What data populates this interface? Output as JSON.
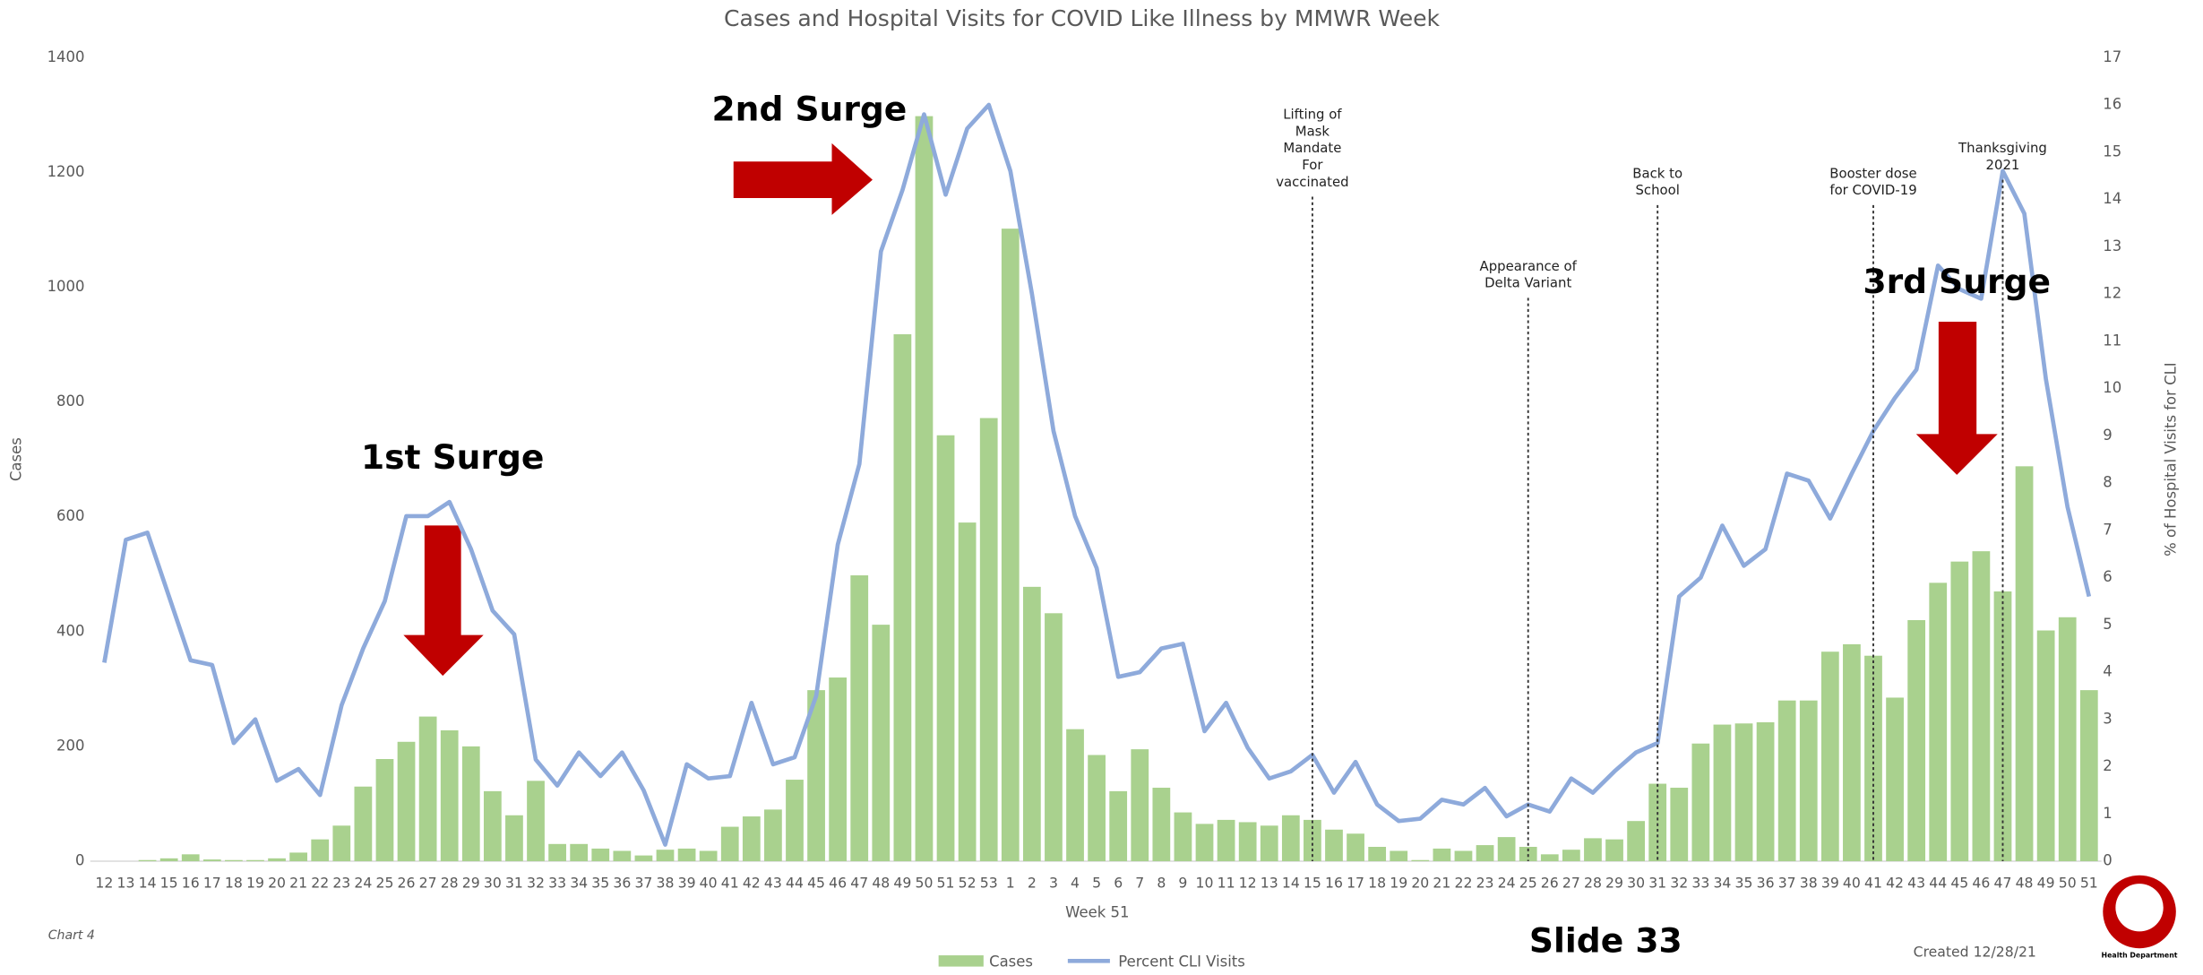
{
  "chart_data": {
    "type": "bar-line",
    "title": "Cases and Hospital Visits for COVID Like Illness by MMWR Week",
    "x_label": "Week 51",
    "y_label": "Cases",
    "y2_label": "% of Hospital Visits for CLI",
    "categories": [
      "12",
      "13",
      "14",
      "15",
      "16",
      "17",
      "18",
      "19",
      "20",
      "21",
      "22",
      "23",
      "24",
      "25",
      "26",
      "27",
      "28",
      "29",
      "30",
      "31",
      "32",
      "33",
      "34",
      "35",
      "36",
      "37",
      "38",
      "39",
      "40",
      "41",
      "42",
      "43",
      "44",
      "45",
      "46",
      "47",
      "48",
      "49",
      "50",
      "51",
      "52",
      "53",
      "1",
      "2",
      "3",
      "4",
      "5",
      "6",
      "7",
      "8",
      "9",
      "10",
      "11",
      "12",
      "13",
      "14",
      "15",
      "16",
      "17",
      "18",
      "19",
      "20",
      "21",
      "22",
      "23",
      "24",
      "25",
      "26",
      "27",
      "28",
      "29",
      "30",
      "31",
      "32",
      "33",
      "34",
      "35",
      "36",
      "37",
      "38",
      "39",
      "40",
      "41",
      "42",
      "43",
      "44",
      "45",
      "46",
      "47",
      "48",
      "49",
      "50",
      "51"
    ],
    "series": [
      {
        "name": "Cases",
        "type": "bar",
        "color": "#a9d18e",
        "values": [
          0,
          0,
          2,
          5,
          12,
          3,
          2,
          2,
          5,
          15,
          38,
          62,
          130,
          178,
          208,
          252,
          228,
          200,
          122,
          80,
          140,
          30,
          30,
          22,
          18,
          10,
          20,
          22,
          18,
          60,
          78,
          90,
          142,
          298,
          320,
          498,
          412,
          918,
          1298,
          742,
          590,
          772,
          1102,
          478,
          432,
          230,
          185,
          122,
          195,
          128,
          85,
          65,
          72,
          68,
          62,
          80,
          72,
          55,
          48,
          25,
          18,
          2,
          22,
          18,
          28,
          42,
          25,
          12,
          20,
          40,
          38,
          70,
          135,
          128,
          205,
          238,
          240,
          242,
          280,
          280,
          365,
          378,
          358,
          285,
          420,
          485,
          522,
          540,
          470,
          688,
          402,
          425,
          298
        ]
      },
      {
        "name": "Percent CLI Visits",
        "type": "line",
        "axis": "y2",
        "color": "#8eaadb",
        "values": [
          4.2,
          6.8,
          6.95,
          5.6,
          4.25,
          4.15,
          2.5,
          3.0,
          1.7,
          1.95,
          1.4,
          3.3,
          4.5,
          5.5,
          7.3,
          7.3,
          7.6,
          6.6,
          5.3,
          4.8,
          2.15,
          1.6,
          2.3,
          1.8,
          2.3,
          1.5,
          0.35,
          2.05,
          1.75,
          1.8,
          3.35,
          2.05,
          2.2,
          3.5,
          6.7,
          8.4,
          12.9,
          14.2,
          15.8,
          14.1,
          15.5,
          16.0,
          14.6,
          12.0,
          9.1,
          7.3,
          6.2,
          3.9,
          4.0,
          4.5,
          4.6,
          2.75,
          3.35,
          2.4,
          1.75,
          1.9,
          2.25,
          1.45,
          2.1,
          1.2,
          0.85,
          0.9,
          1.3,
          1.2,
          1.55,
          0.95,
          1.2,
          1.05,
          1.75,
          1.45,
          1.9,
          2.3,
          2.5,
          5.6,
          6.0,
          7.1,
          6.25,
          6.6,
          8.2,
          8.05,
          7.25,
          8.2,
          9.1,
          9.8,
          10.4,
          12.6,
          12.1,
          11.9,
          14.6,
          13.7,
          10.2,
          7.5,
          5.6
        ]
      }
    ],
    "ylim": [
      0,
      1400
    ],
    "yticks": [
      0,
      200,
      400,
      600,
      800,
      1000,
      1200,
      1400
    ],
    "y2lim": [
      0,
      17
    ],
    "y2ticks": [
      0,
      1,
      2,
      3,
      4,
      5,
      6,
      7,
      8,
      9,
      10,
      11,
      12,
      13,
      14,
      15,
      16,
      17
    ],
    "annotations": [
      {
        "lines": [
          "Lifting of",
          "Mask",
          "Mandate",
          "For",
          "vaccinated"
        ]
      },
      {
        "lines": [
          "Appearance of",
          "Delta Variant"
        ]
      },
      {
        "lines": [
          "Back to",
          "School"
        ]
      },
      {
        "lines": [
          "Booster dose",
          "for COVID-19"
        ]
      },
      {
        "lines": [
          "Thanksgiving",
          "2021"
        ]
      }
    ],
    "surges": [
      "1st Surge",
      "2nd Surge",
      "3rd Surge"
    ],
    "footer": {
      "chart_number": "Chart 4",
      "slide": "Slide 33",
      "created": "Created 12/28/21",
      "logo_text": "Health Department"
    }
  }
}
